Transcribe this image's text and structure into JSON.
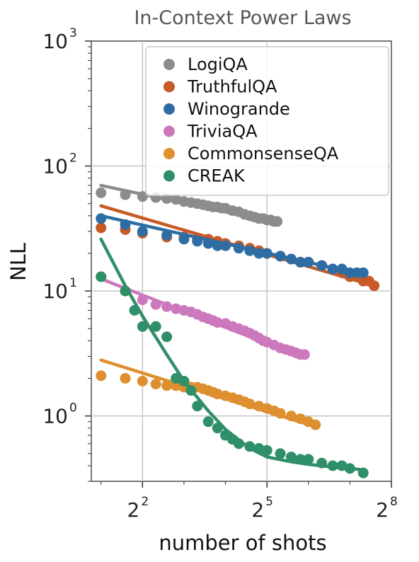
{
  "chart_data": {
    "type": "scatter",
    "title": "In-Context Power Laws",
    "xlabel": "number of shots",
    "ylabel": "NLL",
    "xscale": "log2",
    "yscale": "log10",
    "xlim": [
      1.7,
      256
    ],
    "ylim": [
      0.3,
      1000
    ],
    "grid": true,
    "legend_position": "top-right",
    "x_ticks": [
      {
        "base": "2",
        "exp": "2",
        "value": 4
      },
      {
        "base": "2",
        "exp": "5",
        "value": 32
      },
      {
        "base": "2",
        "exp": "8",
        "value": 256
      }
    ],
    "y_ticks": [
      {
        "base": "10",
        "exp": "0",
        "value": 1
      },
      {
        "base": "10",
        "exp": "1",
        "value": 10
      },
      {
        "base": "10",
        "exp": "2",
        "value": 100
      },
      {
        "base": "10",
        "exp": "3",
        "value": 1000
      }
    ],
    "series": [
      {
        "name": "LogiQA",
        "color": "#8c8c8c",
        "x": [
          2,
          3,
          4,
          5,
          6,
          7,
          8,
          9,
          10,
          11,
          12,
          13,
          14,
          15,
          16,
          18,
          20,
          22,
          24,
          26,
          28,
          30,
          32,
          34,
          36,
          38
        ],
        "y": [
          61,
          59,
          57,
          56,
          55,
          54,
          52,
          51,
          50,
          49,
          48,
          47,
          47,
          46,
          46,
          44,
          43,
          41,
          40,
          39,
          38,
          38,
          37,
          37,
          36,
          36
        ],
        "fit_x": [
          2,
          38
        ],
        "fit_y": [
          70,
          35
        ]
      },
      {
        "name": "TruthfulQA",
        "color": "#c75a27",
        "x": [
          2,
          3,
          4,
          6,
          8,
          10,
          12,
          14,
          16,
          20,
          24,
          28,
          32,
          40,
          48,
          56,
          64,
          80,
          96,
          112,
          128,
          144,
          160,
          176,
          192
        ],
        "y": [
          32,
          31,
          29,
          27,
          27,
          26,
          26,
          25,
          24,
          23,
          22,
          21,
          20,
          19,
          18,
          17,
          17,
          16,
          15,
          14,
          13,
          13,
          12,
          12,
          11
        ],
        "fit_x": [
          2,
          192
        ],
        "fit_y": [
          48,
          11
        ]
      },
      {
        "name": "Winogrande",
        "color": "#2e6da4",
        "x": [
          2,
          3,
          4,
          6,
          8,
          10,
          12,
          14,
          16,
          20,
          24,
          28,
          32,
          40,
          48,
          56,
          64,
          80,
          96,
          112,
          128,
          144,
          160
        ],
        "y": [
          38,
          34,
          30,
          28,
          26,
          25,
          24,
          23,
          23,
          22,
          21,
          20,
          20,
          19,
          18,
          17,
          17,
          16,
          15,
          15,
          14,
          14,
          14
        ],
        "fit_x": [
          2,
          160
        ],
        "fit_y": [
          40,
          13.5
        ]
      },
      {
        "name": "TriviaQA",
        "color": "#cc78bc",
        "x": [
          2,
          3,
          4,
          5,
          6,
          7,
          8,
          9,
          10,
          11,
          12,
          13,
          14,
          16,
          18,
          20,
          22,
          24,
          26,
          28,
          30,
          32,
          36,
          40,
          44,
          48,
          52,
          56,
          60
        ],
        "y": [
          13,
          10,
          8.5,
          7.8,
          7.5,
          7.2,
          7,
          6.8,
          6.5,
          6.2,
          6,
          5.8,
          5.6,
          5.5,
          5.2,
          5,
          4.8,
          4.6,
          4.4,
          4.2,
          4,
          3.9,
          3.7,
          3.5,
          3.4,
          3.3,
          3.2,
          3.1,
          3.1
        ],
        "fit_x": [
          2,
          60
        ],
        "fit_y": [
          12.5,
          2.9
        ]
      },
      {
        "name": "CommonsenseQA",
        "color": "#de8f2f",
        "x": [
          2,
          3,
          4,
          5,
          6,
          7,
          8,
          9,
          10,
          11,
          12,
          13,
          14,
          16,
          18,
          20,
          22,
          24,
          28,
          32,
          36,
          40,
          48,
          56,
          64,
          72
        ],
        "y": [
          2.1,
          2,
          1.9,
          1.8,
          1.75,
          1.75,
          1.7,
          1.7,
          1.7,
          1.65,
          1.6,
          1.55,
          1.5,
          1.45,
          1.4,
          1.35,
          1.3,
          1.25,
          1.2,
          1.15,
          1.1,
          1.05,
          1,
          0.95,
          0.9,
          0.85
        ],
        "fit_x": [
          2,
          72
        ],
        "fit_y": [
          2.8,
          0.82
        ]
      },
      {
        "name": "CREAK",
        "color": "#2f8f68",
        "x": [
          2,
          3,
          3.5,
          4,
          5,
          6,
          7,
          8,
          9,
          10,
          12,
          14,
          16,
          18,
          20,
          24,
          28,
          32,
          40,
          48,
          56,
          64,
          80,
          96,
          112,
          128,
          160
        ],
        "y": [
          13,
          10,
          7,
          5.2,
          5.2,
          4.3,
          2,
          1.9,
          1.6,
          1.2,
          0.9,
          0.8,
          0.7,
          0.65,
          0.6,
          0.57,
          0.55,
          0.53,
          0.5,
          0.47,
          0.45,
          0.45,
          0.42,
          0.4,
          0.4,
          0.38,
          0.35
        ],
        "fit_x": [
          2,
          3,
          4,
          6,
          8,
          12,
          16,
          24,
          32,
          48,
          64,
          96,
          128,
          160
        ],
        "fit_y": [
          26,
          11,
          6.3,
          3.1,
          1.9,
          1.1,
          0.78,
          0.55,
          0.47,
          0.43,
          0.41,
          0.39,
          0.38,
          0.37
        ]
      }
    ]
  }
}
